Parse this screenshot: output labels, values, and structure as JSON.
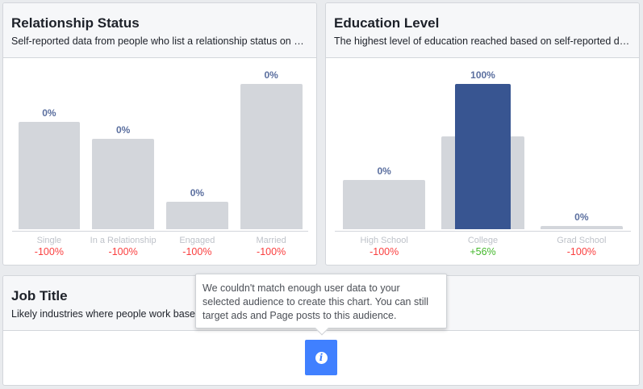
{
  "chart_data": [
    {
      "type": "bar",
      "title": "Relationship Status",
      "subtitle": "Self-reported data from people who list a relationship status on Fa…",
      "categories": [
        "Single",
        "In a Relationship",
        "Engaged",
        "Married"
      ],
      "benchmark": [
        74,
        62,
        19,
        100
      ],
      "values": [
        0,
        0,
        0,
        0
      ],
      "value_labels": [
        "0%",
        "0%",
        "0%",
        "0%"
      ],
      "changes": [
        "-100%",
        "-100%",
        "-100%",
        "-100%"
      ],
      "change_colors": [
        "#fa3e3e",
        "#fa3e3e",
        "#fa3e3e",
        "#fa3e3e"
      ],
      "ylim": [
        0,
        100
      ]
    },
    {
      "type": "bar",
      "title": "Education Level",
      "subtitle": "The highest level of education reached based on self-reported dat…",
      "categories": [
        "High School",
        "College",
        "Grad School"
      ],
      "benchmark": [
        34,
        64,
        2
      ],
      "values": [
        0,
        100,
        0
      ],
      "value_labels": [
        "0%",
        "100%",
        "0%"
      ],
      "changes": [
        "-100%",
        "+56%",
        "-100%"
      ],
      "change_colors": [
        "#fa3e3e",
        "#42b72a",
        "#fa3e3e"
      ],
      "ylim": [
        0,
        100
      ]
    }
  ],
  "job": {
    "title": "Job Title",
    "subtitle": "Likely industries where people work based"
  },
  "tooltip": "We couldn't match enough user data to your selected audience to create this chart. You can still target ads and Page posts to this audience.",
  "colors": {
    "selected": "#385591",
    "benchmark": "#d3d6db",
    "info": "#4080ff"
  }
}
